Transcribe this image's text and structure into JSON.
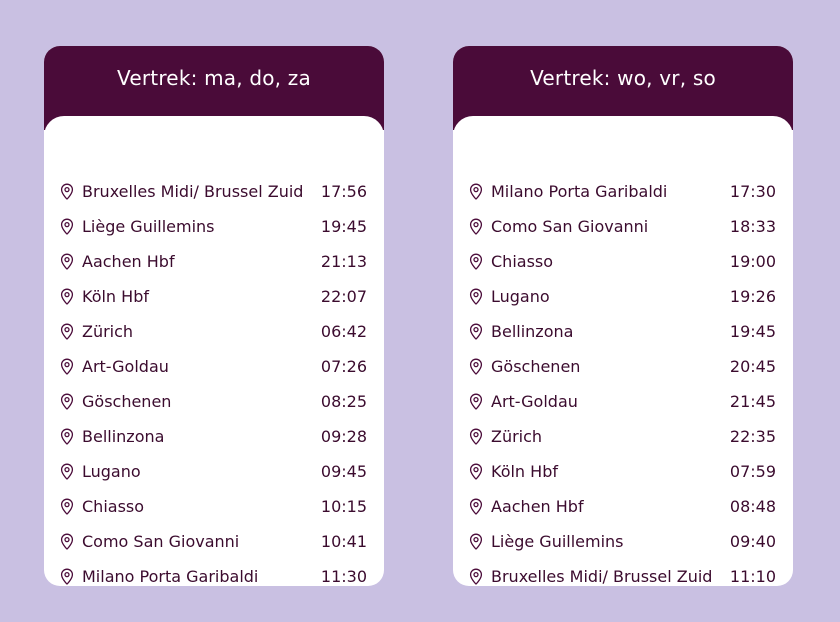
{
  "colors": {
    "background": "#c9c0e2",
    "header": "#4a0b39",
    "text": "#3b0b2e",
    "card": "#ffffff"
  },
  "timetables": [
    {
      "title": "Vertrek: ma, do, za",
      "stops": [
        {
          "name": "Bruxelles Midi/ Brussel Zuid",
          "time": "17:56"
        },
        {
          "name": "Liège Guillemins",
          "time": "19:45"
        },
        {
          "name": "Aachen Hbf",
          "time": "21:13"
        },
        {
          "name": "Köln Hbf",
          "time": "22:07"
        },
        {
          "name": "Zürich",
          "time": "06:42"
        },
        {
          "name": "Art-Goldau",
          "time": "07:26"
        },
        {
          "name": "Göschenen",
          "time": "08:25"
        },
        {
          "name": "Bellinzona",
          "time": "09:28"
        },
        {
          "name": "Lugano",
          "time": "09:45"
        },
        {
          "name": "Chiasso",
          "time": "10:15"
        },
        {
          "name": "Como San Giovanni",
          "time": "10:41"
        },
        {
          "name": "Milano Porta Garibaldi",
          "time": "11:30"
        }
      ]
    },
    {
      "title": "Vertrek: wo, vr, so",
      "stops": [
        {
          "name": "Milano Porta Garibaldi",
          "time": "17:30"
        },
        {
          "name": "Como San Giovanni",
          "time": "18:33"
        },
        {
          "name": "Chiasso",
          "time": "19:00"
        },
        {
          "name": "Lugano",
          "time": "19:26"
        },
        {
          "name": "Bellinzona",
          "time": "19:45"
        },
        {
          "name": "Göschenen",
          "time": "20:45"
        },
        {
          "name": "Art-Goldau",
          "time": "21:45"
        },
        {
          "name": "Zürich",
          "time": "22:35"
        },
        {
          "name": "Köln Hbf",
          "time": "07:59"
        },
        {
          "name": "Aachen Hbf",
          "time": "08:48"
        },
        {
          "name": "Liège Guillemins",
          "time": "09:40"
        },
        {
          "name": "Bruxelles Midi/ Brussel Zuid",
          "time": "11:10"
        }
      ]
    }
  ]
}
